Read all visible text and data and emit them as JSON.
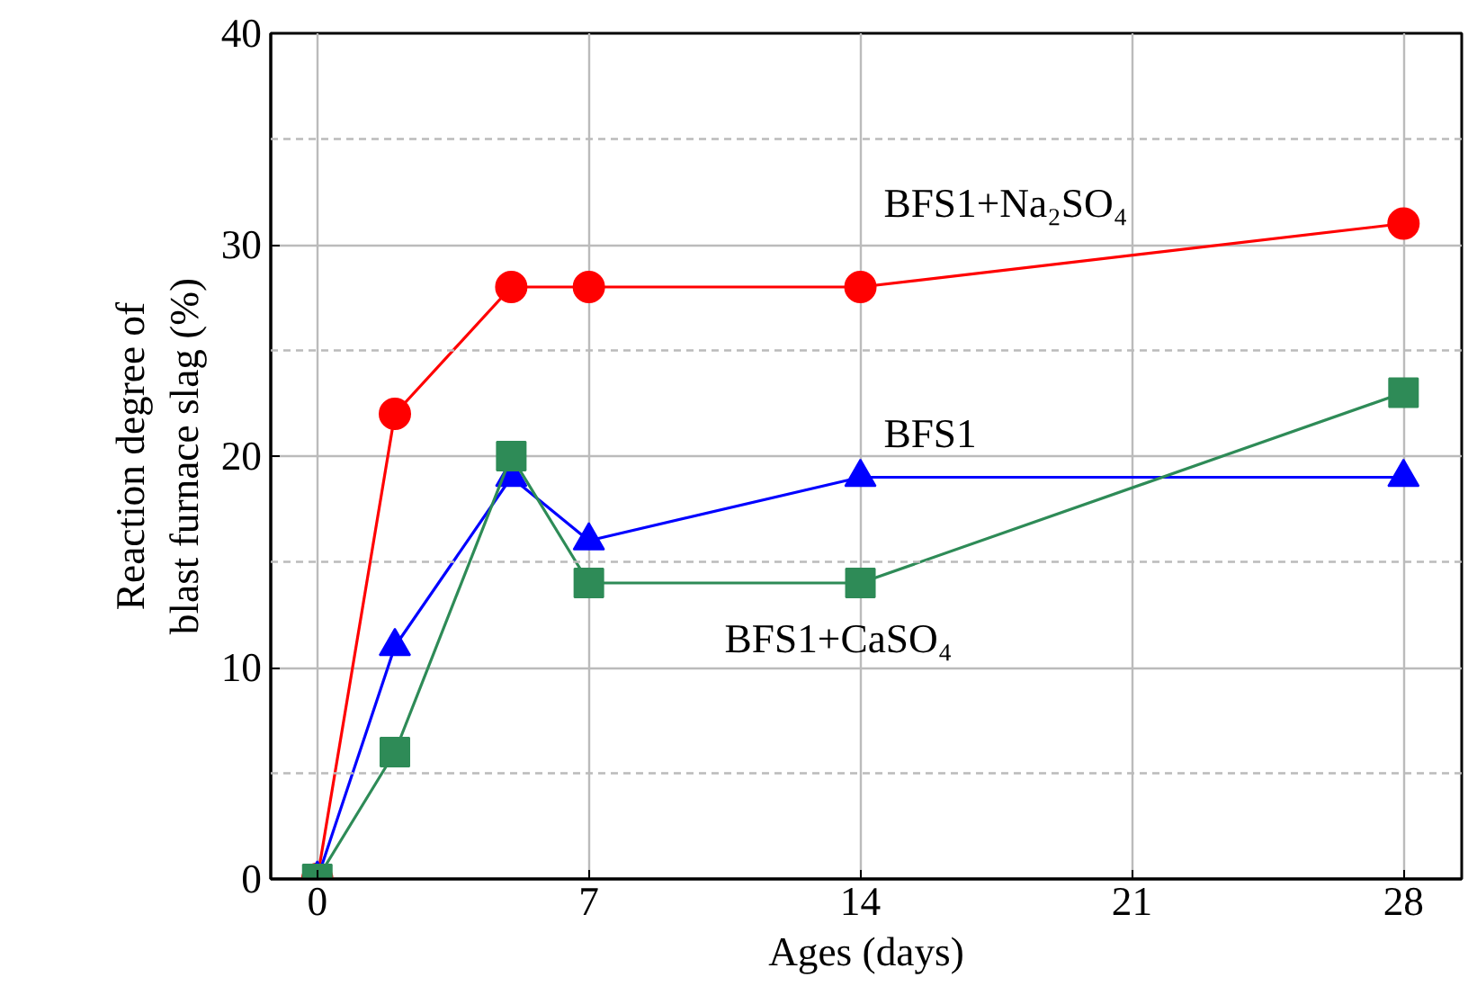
{
  "chart_data": {
    "type": "line",
    "xlabel": "Ages (days)",
    "ylabel": "Reaction degree of\nblast furnace slag (%)",
    "x": [
      0,
      2,
      5,
      7,
      14,
      28
    ],
    "series": [
      {
        "name": "BFS1+Na₂SO₄",
        "color": "#ff0000",
        "values": [
          0,
          22,
          28,
          28,
          28,
          31
        ],
        "marker": "circle"
      },
      {
        "name": "BFS1",
        "color": "#0000ff",
        "values": [
          0,
          11,
          19,
          16,
          19,
          19
        ],
        "marker": "triangle"
      },
      {
        "name": "BFS1+CaSO₄",
        "color": "#2e8b57",
        "values": [
          0,
          6,
          20,
          14,
          14,
          23
        ],
        "marker": "square"
      }
    ],
    "xlim": [
      -1.2,
      29.5
    ],
    "ylim": [
      0,
      40
    ],
    "xticks": [
      0,
      7,
      14,
      21,
      28
    ],
    "yticks": [
      0,
      {
        "value": 5,
        "label": null
      },
      10,
      {
        "value": 15,
        "label": null
      },
      20,
      {
        "value": 25,
        "label": null
      },
      30,
      {
        "value": 35,
        "label": null
      },
      40
    ],
    "grid": true,
    "line_style": "solid"
  }
}
